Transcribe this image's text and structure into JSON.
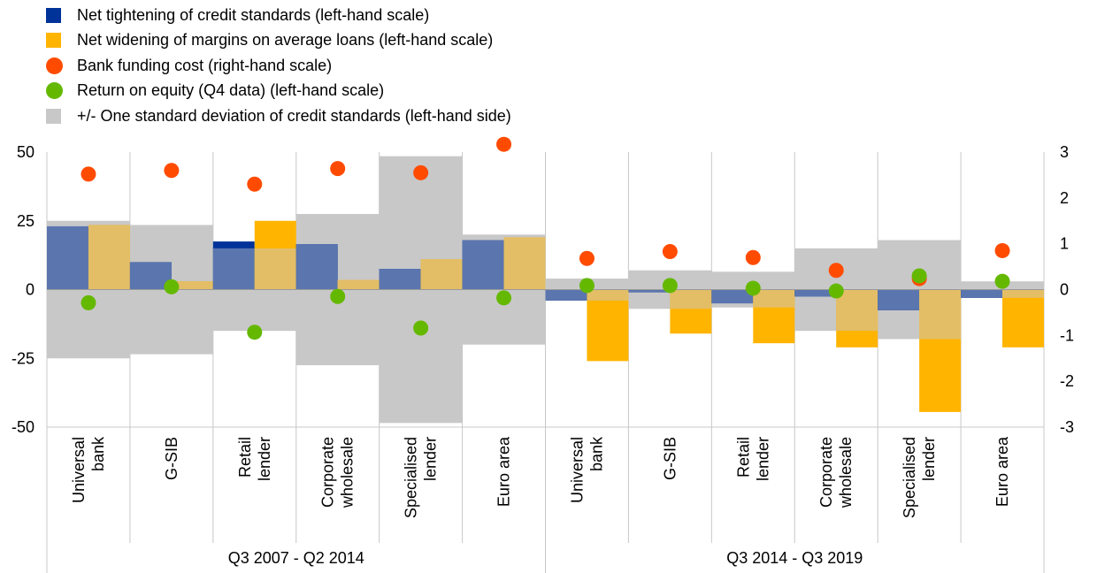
{
  "chart_data": {
    "type": "bar",
    "title": "",
    "xlabel": "",
    "ylabel": "",
    "ylim": [
      -50,
      50
    ],
    "y2lim": [
      -3,
      3
    ],
    "yticks": [
      -50,
      -25,
      0,
      25,
      50
    ],
    "y2ticks": [
      -3,
      -2,
      -1,
      0,
      1,
      2,
      3
    ],
    "categories": [
      [
        "Universal",
        "bank"
      ],
      [
        "G-SIB"
      ],
      [
        "Retail",
        "lender"
      ],
      [
        "Corporate",
        "wholesale"
      ],
      [
        "Specialised",
        "lender"
      ],
      [
        "Euro area"
      ],
      [
        "Universal",
        "bank"
      ],
      [
        "G-SIB"
      ],
      [
        "Retail",
        "lender"
      ],
      [
        "Corporate",
        "wholesale"
      ],
      [
        "Specialised",
        "lender"
      ],
      [
        "Euro area"
      ]
    ],
    "periods": [
      {
        "label": "Q3 2007 - Q2 2014",
        "count": 6
      },
      {
        "label": "Q3 2014 - Q3 2019",
        "count": 6
      }
    ],
    "legend": [
      {
        "label": "Net tightening of credit standards (left-hand scale)",
        "color": "#003399",
        "shape": "square"
      },
      {
        "label": "Net widening of margins on average loans (left-hand scale)",
        "color": "#FFB400",
        "shape": "square"
      },
      {
        "label": "Bank funding cost (right-hand scale)",
        "color": "#FF4B00",
        "shape": "circle"
      },
      {
        "label": "Return on equity (Q4 data) (left-hand scale)",
        "color": "#65B800",
        "shape": "circle"
      },
      {
        "label": "+/- One standard deviation of credit standards  (left-hand side)",
        "color": "#C8C8C8",
        "shape": "square"
      }
    ],
    "series": [
      {
        "name": "Net tightening of credit standards (left-hand scale)",
        "axis": "left",
        "values": [
          23,
          10,
          17.5,
          16.5,
          7.5,
          18,
          -4,
          -1,
          -5,
          -2.5,
          -7.5,
          -3
        ]
      },
      {
        "name": "Net widening of margins on average loans (left-hand scale)",
        "axis": "left",
        "values": [
          23.5,
          3,
          25,
          3.5,
          11,
          19,
          -26,
          -16,
          -19.5,
          -21,
          -44.5,
          -21
        ]
      },
      {
        "name": "Bank funding cost (right-hand scale)",
        "axis": "right",
        "values": [
          2.52,
          2.6,
          2.3,
          2.64,
          2.55,
          3.17,
          0.68,
          0.83,
          0.7,
          0.42,
          0.24,
          0.85
        ]
      },
      {
        "name": "Return on equity (Q4 data) (left-hand scale)",
        "axis": "left",
        "values": [
          -4.8,
          1,
          -15.5,
          -2.5,
          -14,
          -3,
          1.5,
          1.5,
          0.5,
          -0.5,
          5,
          3
        ]
      },
      {
        "name": "+/- One standard deviation of credit standards  (left-hand side)",
        "axis": "left",
        "values": [
          25,
          23.5,
          15,
          27.5,
          48.5,
          20,
          4,
          7,
          6.5,
          15,
          18,
          3
        ]
      }
    ],
    "colors": {
      "tightening": "#003399",
      "tightening_overlap": "#5B75AE",
      "margins": "#FFB400",
      "margins_overlap": "#E3BE66",
      "funding_cost": "#FF4B00",
      "roe": "#65B800",
      "std_band": "#C8C8C8",
      "grid": "#C8C8C8"
    }
  }
}
